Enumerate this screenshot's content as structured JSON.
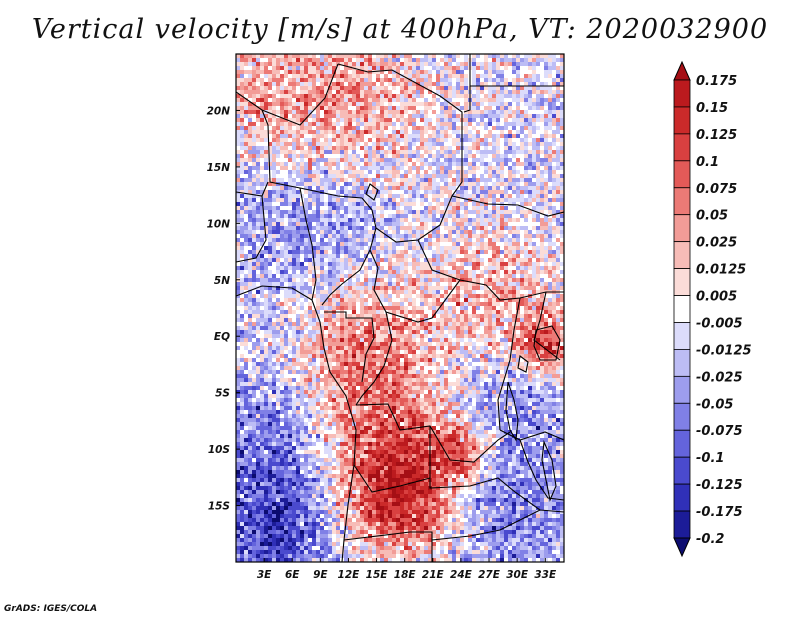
{
  "title": "Vertical velocity [m/s] at 400hPa, VT: 2020032900",
  "credit": "GrADS: IGES/COLA",
  "map": {
    "lon_range": [
      0,
      35
    ],
    "lat_range": [
      -20,
      25
    ],
    "lat_ticks": [
      {
        "lat": 20,
        "label": "20N"
      },
      {
        "lat": 15,
        "label": "15N"
      },
      {
        "lat": 10,
        "label": "10N"
      },
      {
        "lat": 5,
        "label": "5N"
      },
      {
        "lat": 0,
        "label": "EQ"
      },
      {
        "lat": -5,
        "label": "5S"
      },
      {
        "lat": -10,
        "label": "10S"
      },
      {
        "lat": -15,
        "label": "15S"
      }
    ],
    "lon_ticks": [
      {
        "lon": 3,
        "label": "3E"
      },
      {
        "lon": 6,
        "label": "6E"
      },
      {
        "lon": 9,
        "label": "9E"
      },
      {
        "lon": 12,
        "label": "12E"
      },
      {
        "lon": 15,
        "label": "15E"
      },
      {
        "lon": 18,
        "label": "18E"
      },
      {
        "lon": 21,
        "label": "21E"
      },
      {
        "lon": 24,
        "label": "24E"
      },
      {
        "lon": 27,
        "label": "27E"
      },
      {
        "lon": 30,
        "label": "30E"
      },
      {
        "lon": 33,
        "label": "33E"
      }
    ]
  },
  "colorbar": {
    "labels": [
      "0.175",
      "0.15",
      "0.125",
      "0.1",
      "0.075",
      "0.05",
      "0.025",
      "0.0125",
      "0.005",
      "-0.005",
      "-0.0125",
      "-0.025",
      "-0.05",
      "-0.075",
      "-0.1",
      "-0.125",
      "-0.175",
      "-0.2"
    ],
    "colors": [
      "#a50f15",
      "#bb1a1e",
      "#cb2a2a",
      "#d94040",
      "#e35a58",
      "#ec7a76",
      "#f29c97",
      "#f7bcb7",
      "#fbdcd8",
      "#ffffff",
      "#dcdcfb",
      "#bdbdf5",
      "#9d9ded",
      "#8080e6",
      "#6464dc",
      "#4a4ace",
      "#3030b8",
      "#1c1c98",
      "#0c0c70"
    ]
  }
}
